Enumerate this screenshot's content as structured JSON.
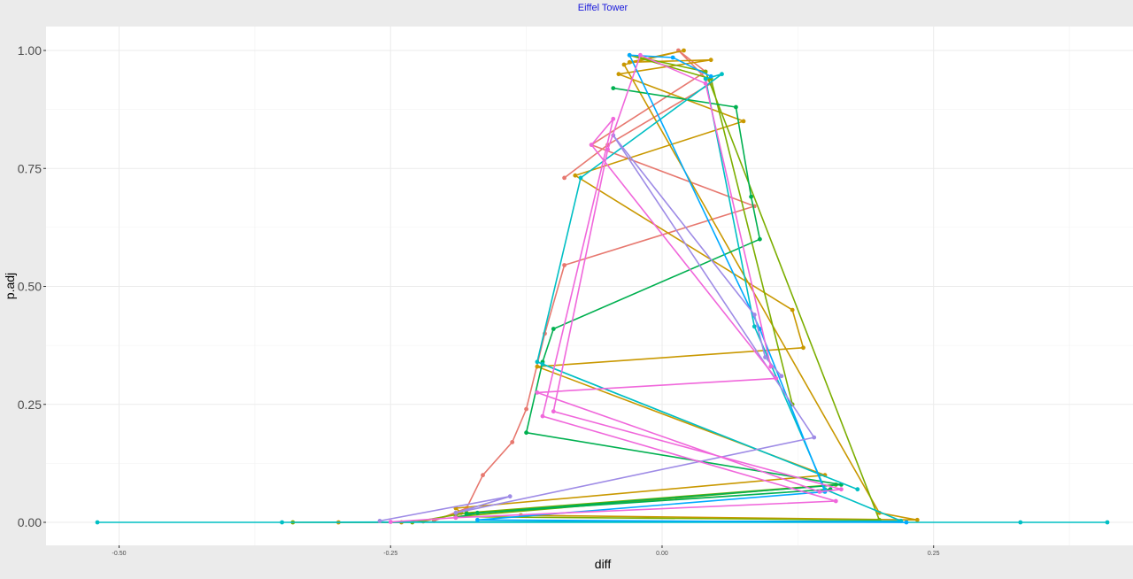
{
  "chart_data": {
    "type": "line",
    "title": "Eiffel Tower",
    "xlabel": "diff",
    "ylabel": "p.adj",
    "xlim": [
      -0.52,
      0.41
    ],
    "ylim": [
      0.0,
      1.0
    ],
    "x_ticks": [
      {
        "value": -0.5,
        "label": "-0.50"
      },
      {
        "value": -0.25,
        "label": "-0.25"
      },
      {
        "value": 0.0,
        "label": "0.00"
      },
      {
        "value": 0.25,
        "label": "0.25"
      }
    ],
    "y_ticks": [
      {
        "value": 0.0,
        "label": "0.00"
      },
      {
        "value": 0.25,
        "label": "0.25"
      },
      {
        "value": 0.5,
        "label": "0.50"
      },
      {
        "value": 0.75,
        "label": "0.75"
      },
      {
        "value": 1.0,
        "label": "1.00"
      }
    ],
    "grid": true,
    "legend": "none",
    "series": [
      {
        "color": "#e7786f",
        "points": [
          [
            -0.21,
            0.003
          ],
          [
            -0.18,
            0.03
          ],
          [
            -0.165,
            0.1
          ],
          [
            -0.138,
            0.17
          ],
          [
            -0.125,
            0.24
          ],
          [
            -0.108,
            0.4
          ],
          [
            -0.09,
            0.545
          ],
          [
            0.085,
            0.67
          ],
          [
            -0.065,
            0.8
          ],
          [
            0.04,
            0.955
          ],
          [
            0.015,
            1.0
          ],
          [
            0.045,
            0.93
          ],
          [
            -0.05,
            0.8
          ],
          [
            -0.09,
            0.73
          ]
        ]
      },
      {
        "color": "#c99800",
        "points": [
          [
            -0.298,
            0.0
          ],
          [
            -0.24,
            0.0
          ],
          [
            -0.22,
            0.002
          ],
          [
            -0.185,
            0.02
          ],
          [
            -0.19,
            0.03
          ],
          [
            0.15,
            0.1
          ],
          [
            -0.115,
            0.33
          ],
          [
            0.13,
            0.37
          ],
          [
            0.12,
            0.45
          ],
          [
            -0.08,
            0.735
          ],
          [
            0.075,
            0.85
          ],
          [
            -0.04,
            0.95
          ],
          [
            0.045,
            0.98
          ],
          [
            -0.03,
            0.975
          ],
          [
            0.02,
            1.0
          ],
          [
            -0.035,
            0.97
          ],
          [
            0.2,
            0.02
          ],
          [
            0.235,
            0.005
          ],
          [
            -0.13,
            0.015
          ]
        ]
      },
      {
        "color": "#7cae00",
        "points": [
          [
            -0.34,
            0.0
          ],
          [
            -0.23,
            0.0
          ],
          [
            -0.18,
            0.02
          ],
          [
            0.16,
            0.08
          ],
          [
            -0.19,
            0.012
          ],
          [
            0.2,
            0.005
          ],
          [
            0.04,
            0.955
          ],
          [
            -0.03,
            0.99
          ],
          [
            0.045,
            0.94
          ],
          [
            0.12,
            0.25
          ]
        ]
      },
      {
        "color": "#00b050",
        "points": [
          [
            -0.19,
            0.01
          ],
          [
            -0.17,
            0.02
          ],
          [
            0.155,
            0.07
          ],
          [
            -0.18,
            0.018
          ],
          [
            0.165,
            0.08
          ],
          [
            -0.125,
            0.19
          ],
          [
            -0.11,
            0.34
          ],
          [
            -0.1,
            0.41
          ],
          [
            0.09,
            0.6
          ],
          [
            0.082,
            0.69
          ],
          [
            0.068,
            0.88
          ],
          [
            -0.045,
            0.92
          ]
        ]
      },
      {
        "color": "#00bfc4",
        "points": [
          [
            -0.52,
            0.0
          ],
          [
            0.41,
            0.0
          ],
          [
            0.33,
            0.0
          ],
          [
            -0.35,
            0.0
          ],
          [
            0.22,
            0.003
          ],
          [
            0.15,
            0.07
          ],
          [
            0.085,
            0.415
          ],
          [
            0.04,
            0.94
          ],
          [
            0.055,
            0.95
          ],
          [
            -0.075,
            0.73
          ],
          [
            -0.115,
            0.34
          ],
          [
            0.18,
            0.07
          ],
          [
            -0.11,
            0.335
          ]
        ]
      },
      {
        "color": "#00a9ff",
        "points": [
          [
            0.225,
            0.0
          ],
          [
            -0.17,
            0.005
          ],
          [
            0.15,
            0.065
          ],
          [
            0.09,
            0.41
          ],
          [
            -0.03,
            0.99
          ],
          [
            0.01,
            0.985
          ],
          [
            0.045,
            0.945
          ]
        ]
      },
      {
        "color": "#9e8be6",
        "points": [
          [
            -0.26,
            0.003
          ],
          [
            -0.14,
            0.055
          ],
          [
            -0.19,
            0.02
          ],
          [
            0.14,
            0.18
          ],
          [
            -0.045,
            0.82
          ],
          [
            0.085,
            0.44
          ],
          [
            0.095,
            0.35
          ],
          [
            0.11,
            0.31
          ]
        ]
      },
      {
        "color": "#f067db",
        "points": [
          [
            -0.25,
            0.001
          ],
          [
            -0.19,
            0.01
          ],
          [
            0.16,
            0.045
          ],
          [
            -0.11,
            0.225
          ],
          [
            -0.045,
            0.855
          ],
          [
            -0.065,
            0.8
          ],
          [
            0.105,
            0.305
          ],
          [
            -0.115,
            0.275
          ],
          [
            0.145,
            0.065
          ],
          [
            0.165,
            0.07
          ],
          [
            -0.1,
            0.235
          ],
          [
            -0.05,
            0.79
          ],
          [
            -0.02,
            0.99
          ],
          [
            0.04,
            0.93
          ],
          [
            0.1,
            0.33
          ]
        ]
      }
    ]
  }
}
